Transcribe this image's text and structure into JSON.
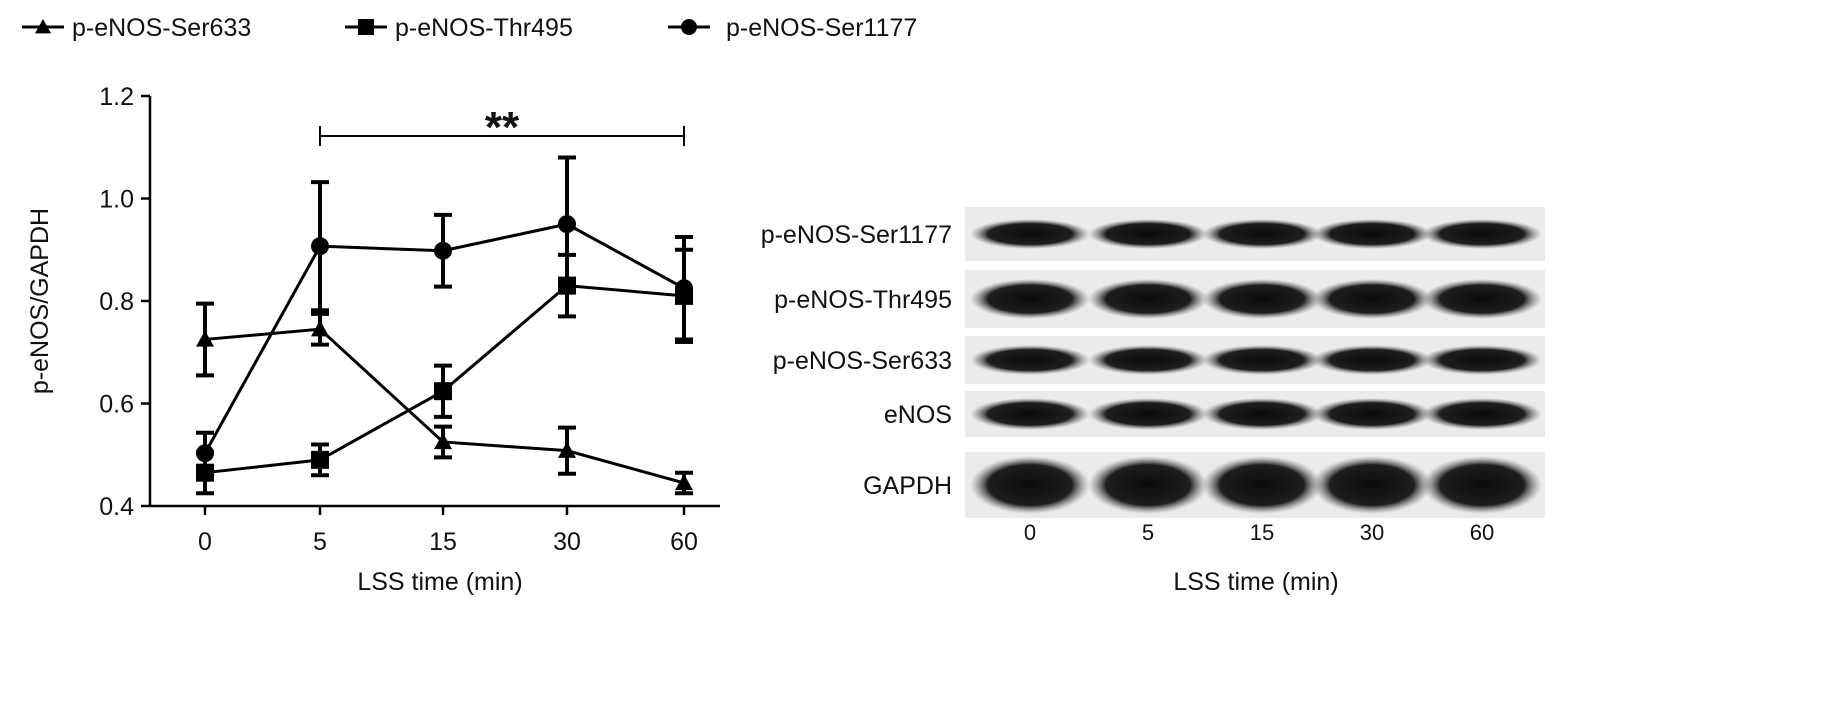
{
  "chart_data": {
    "type": "line",
    "x": [
      "0",
      "5",
      "15",
      "30",
      "60"
    ],
    "xlabel": "LSS time (min)",
    "ylabel": "p-eNOS/GAPDH",
    "ylim": [
      0.4,
      1.2
    ],
    "yticks": [
      "0.4",
      "0.6",
      "0.8",
      "1.0",
      "1.2"
    ],
    "legend_placement": "top",
    "grid": false,
    "series": [
      {
        "name": "p-eNOS-Ser633",
        "marker": "triangle",
        "values": [
          0.725,
          0.745,
          0.525,
          0.508,
          0.445
        ],
        "errors": [
          0.07,
          0.03,
          0.03,
          0.045,
          0.02
        ]
      },
      {
        "name": "p-eNOS-Thr495",
        "marker": "square",
        "values": [
          0.465,
          0.49,
          0.624,
          0.83,
          0.81
        ],
        "errors": [
          0.04,
          0.03,
          0.05,
          0.06,
          0.09
        ]
      },
      {
        "name": "p-eNOS-Ser1177",
        "marker": "circle",
        "values": [
          0.503,
          0.907,
          0.898,
          0.95,
          0.825
        ],
        "errors": [
          0.04,
          0.125,
          0.07,
          0.13,
          0.1
        ]
      }
    ],
    "annotation": {
      "text": "**",
      "from": "5",
      "to": "60"
    }
  },
  "blot": {
    "rows": [
      "p-eNOS-Ser1177",
      "p-eNOS-Thr495",
      "p-eNOS-Ser633",
      "eNOS",
      "GAPDH"
    ],
    "lanes": [
      "0",
      "5",
      "15",
      "30",
      "60"
    ],
    "xlabel": "LSS time (min)"
  }
}
